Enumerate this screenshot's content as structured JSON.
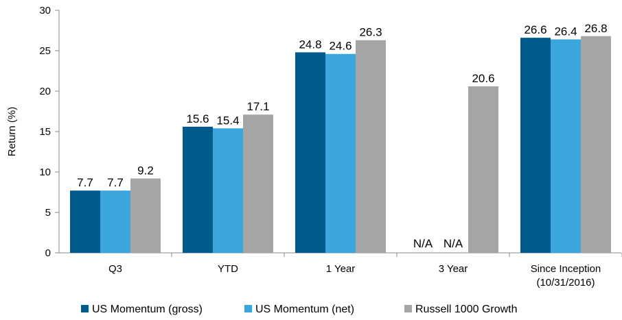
{
  "chart_data": {
    "type": "bar",
    "categories": [
      "Q3",
      "YTD",
      "1 Year",
      "3 Year",
      "Since Inception\n(10/31/2016)"
    ],
    "series": [
      {
        "name": "US Momentum (gross)",
        "color": "#005a8c",
        "values": [
          7.7,
          15.6,
          24.8,
          null,
          26.6
        ],
        "labels": [
          "7.7",
          "15.6",
          "24.8",
          "N/A",
          "26.6"
        ]
      },
      {
        "name": "US Momentum (net)",
        "color": "#3aa6dc",
        "values": [
          7.7,
          15.4,
          24.6,
          null,
          26.4
        ],
        "labels": [
          "7.7",
          "15.4",
          "24.6",
          "N/A",
          "26.4"
        ]
      },
      {
        "name": "Russell 1000 Growth",
        "color": "#a6a6a6",
        "values": [
          9.2,
          17.1,
          26.3,
          20.6,
          26.8
        ],
        "labels": [
          "9.2",
          "17.1",
          "26.3",
          "20.6",
          "26.8"
        ]
      }
    ],
    "ylabel": "Return (%)",
    "ylim": [
      0,
      30
    ],
    "yticks": [
      0,
      5,
      10,
      15,
      20,
      25,
      30
    ],
    "grid": false,
    "legend": "bottom"
  }
}
